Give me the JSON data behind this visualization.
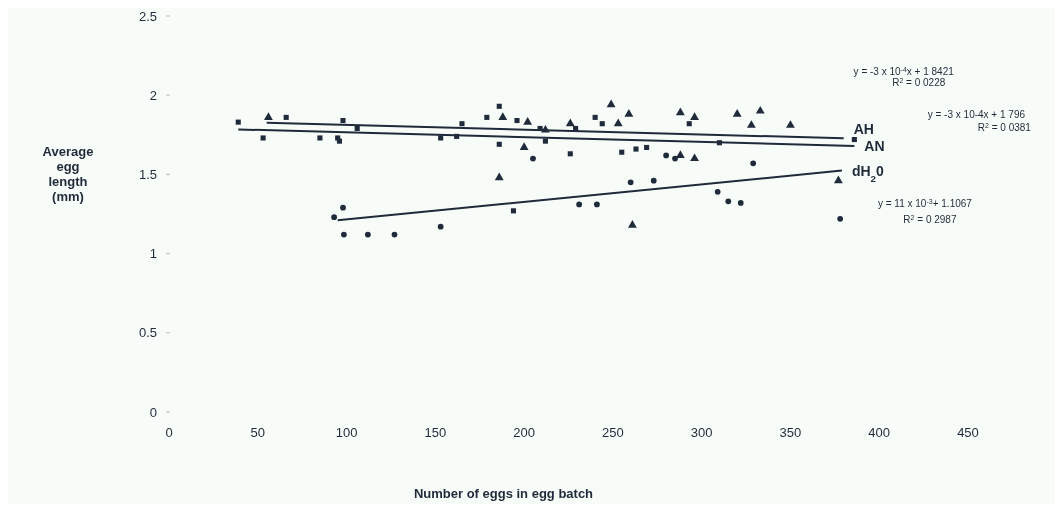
{
  "chart_data": {
    "type": "scatter",
    "xlabel": "Number of eggs in egg batch",
    "ylabel": "Average egg length (mm)",
    "xlim": [
      0,
      450
    ],
    "xticks": [
      0,
      50,
      100,
      150,
      200,
      250,
      300,
      350,
      400,
      450
    ],
    "ylim": [
      0,
      2.5
    ],
    "yticks": [
      0,
      0.5,
      1,
      1.5,
      2,
      2.5
    ],
    "grid": false,
    "series": [
      {
        "marker": "triangle",
        "color": "#1f2a3a",
        "x": [
          56,
          188,
          200,
          202,
          212,
          226,
          249,
          253,
          259,
          288,
          296,
          320,
          328,
          333,
          350,
          186,
          288,
          296,
          261,
          377
        ],
        "values": [
          1.86,
          1.86,
          1.67,
          1.83,
          1.78,
          1.82,
          1.94,
          1.82,
          1.88,
          1.89,
          1.86,
          1.88,
          1.81,
          1.9,
          1.81,
          1.48,
          1.62,
          1.6,
          1.18,
          1.46
        ]
      },
      {
        "marker": "square",
        "color": "#1f2a3a",
        "x": [
          39,
          53,
          66,
          85,
          95,
          96,
          98,
          106,
          153,
          162,
          165,
          179,
          186,
          186,
          196,
          209,
          212,
          226,
          229,
          240,
          244,
          255,
          263,
          269,
          293,
          310,
          386,
          194
        ],
        "values": [
          1.83,
          1.73,
          1.86,
          1.73,
          1.73,
          1.71,
          1.84,
          1.79,
          1.73,
          1.74,
          1.82,
          1.86,
          1.93,
          1.69,
          1.84,
          1.79,
          1.71,
          1.63,
          1.79,
          1.86,
          1.82,
          1.64,
          1.66,
          1.67,
          1.82,
          1.7,
          1.72,
          1.27
        ]
      },
      {
        "marker": "circle",
        "color": "#1f2a3a",
        "x": [
          93,
          98,
          98.5,
          112,
          127,
          153,
          205,
          231,
          241,
          260,
          273,
          280,
          285,
          309,
          315,
          322,
          329,
          378
        ],
        "values": [
          1.23,
          1.29,
          1.12,
          1.12,
          1.12,
          1.17,
          1.6,
          1.31,
          1.31,
          1.45,
          1.46,
          1.62,
          1.6,
          1.39,
          1.33,
          1.32,
          1.57,
          1.22
        ]
      },
      {
        "type": "line",
        "name": "AH",
        "color": "#1f2a3a",
        "x": [
          55,
          380
        ],
        "values": [
          1.826,
          1.728
        ]
      },
      {
        "type": "line",
        "name": "AN",
        "color": "#1f2a3a",
        "x": [
          39,
          386
        ],
        "values": [
          1.784,
          1.68
        ]
      },
      {
        "type": "line",
        "name": "dH$_{2}$0",
        "color": "#1f2a3a",
        "x": [
          95,
          379
        ],
        "values": [
          1.211,
          1.524
        ]
      }
    ],
    "annotations": [
      "y = -3 x 10$^{-4}$x + 1 8421",
      "R$^{2}$ = 0 0228",
      "y = -3 x 10-4x + 1 796",
      "R$^{2}$ = 0 0381",
      "y = 11 x 10$^{-3}$+ 1.1067",
      "R$^{2}$ = 0 2987"
    ]
  }
}
